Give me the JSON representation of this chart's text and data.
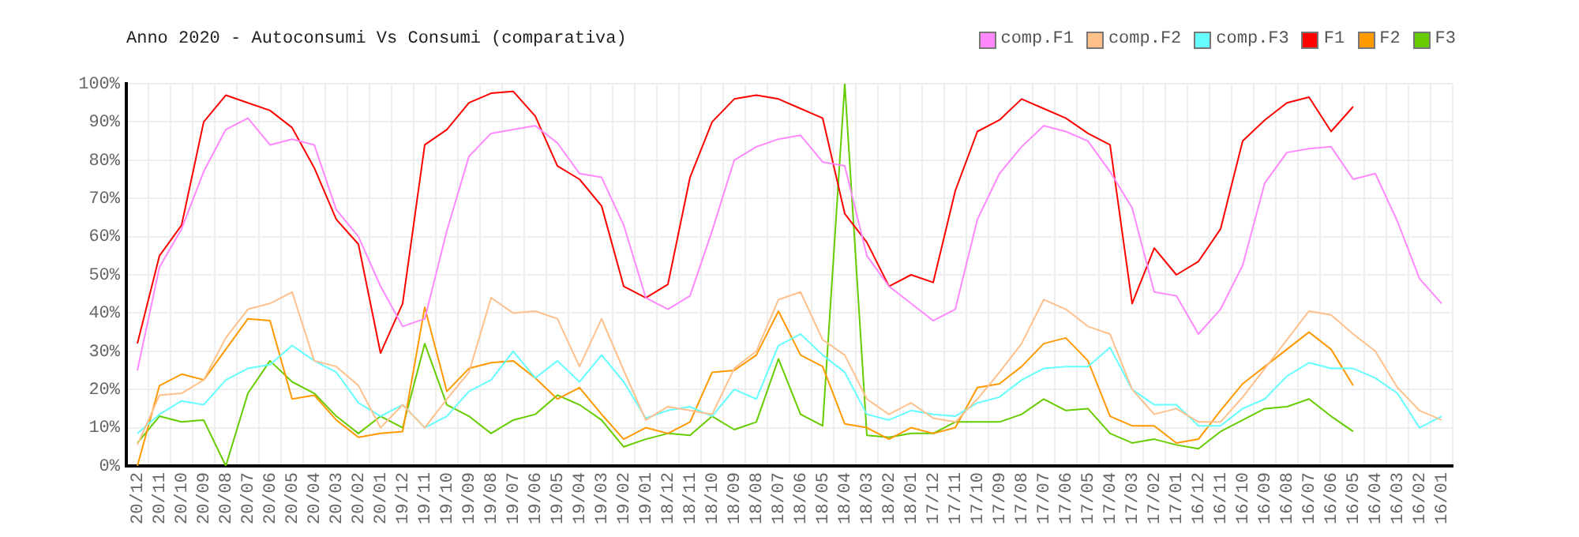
{
  "chart_data": {
    "type": "line",
    "title": "Anno 2020 - Autoconsumi Vs Consumi (comparativa)",
    "categories": [
      "20/12",
      "20/11",
      "20/10",
      "20/09",
      "20/08",
      "20/07",
      "20/06",
      "20/05",
      "20/04",
      "20/03",
      "20/02",
      "20/01",
      "19/12",
      "19/11",
      "19/10",
      "19/09",
      "19/08",
      "19/07",
      "19/06",
      "19/05",
      "19/04",
      "19/03",
      "19/02",
      "19/01",
      "18/12",
      "18/11",
      "18/10",
      "18/09",
      "18/08",
      "18/07",
      "18/06",
      "18/05",
      "18/04",
      "18/03",
      "18/02",
      "18/01",
      "17/12",
      "17/11",
      "17/10",
      "17/09",
      "17/08",
      "17/07",
      "17/06",
      "17/05",
      "17/04",
      "17/03",
      "17/02",
      "17/01",
      "16/12",
      "16/11",
      "16/10",
      "16/09",
      "16/08",
      "16/07",
      "16/06",
      "16/05",
      "16/04",
      "16/03",
      "16/02",
      "16/01"
    ],
    "series": [
      {
        "name": "comp.F1",
        "color": "#ff88ff",
        "values": [
          25,
          52,
          62,
          77,
          88,
          91,
          84,
          85.5,
          84,
          67,
          60,
          47,
          36.5,
          38.5,
          61.5,
          81,
          87,
          88,
          89,
          84.5,
          76.5,
          75.5,
          63,
          44,
          41,
          44.5,
          61.5,
          80,
          83.5,
          85.5,
          86.5,
          79.5,
          78.5,
          55,
          47,
          42.5,
          38,
          41,
          64.5,
          76.5,
          83.5,
          89,
          87.5,
          85,
          77,
          67.5,
          45.5,
          44.5,
          34.5,
          41,
          52.5,
          74,
          82,
          83,
          83.5,
          75,
          76.5,
          64,
          49,
          42.5
        ]
      },
      {
        "name": "comp.F2",
        "color": "#ffc08c",
        "values": [
          5.5,
          18.5,
          19,
          22.5,
          33.5,
          41,
          42.5,
          45.5,
          27.5,
          26,
          21,
          10,
          16,
          10,
          17.5,
          24.5,
          44,
          40,
          40.5,
          38.5,
          26,
          38.5,
          25,
          12,
          15.5,
          14.5,
          13.5,
          25.5,
          30,
          43.5,
          45.5,
          33,
          29,
          17.5,
          13.5,
          16.5,
          12.5,
          11.5,
          17.5,
          24.5,
          32,
          43.5,
          41,
          36.5,
          34.5,
          20,
          13.5,
          15,
          11.5,
          11.5,
          18,
          25.5,
          33,
          40.5,
          39.5,
          34.5,
          30,
          20.5,
          14.5,
          12
        ]
      },
      {
        "name": "comp.F3",
        "color": "#66ffff",
        "values": [
          8.5,
          13.5,
          17,
          16,
          22.5,
          25.5,
          26.5,
          31.5,
          27.5,
          24.5,
          16.5,
          13,
          16,
          10,
          13,
          19.5,
          22.5,
          30,
          23,
          27.5,
          22,
          29,
          22,
          12.5,
          14.5,
          15.5,
          13,
          20,
          17.5,
          31.5,
          34.5,
          29,
          24.5,
          13.5,
          12,
          14.5,
          13.5,
          13,
          16.5,
          18,
          22.5,
          25.5,
          26,
          26,
          31,
          20,
          16,
          16,
          10.5,
          10.5,
          15,
          17.5,
          23.5,
          27,
          25.5,
          25.5,
          23,
          19,
          10,
          13
        ]
      },
      {
        "name": "F1",
        "color": "#ff0000",
        "values": [
          32,
          55,
          63,
          90,
          97,
          95,
          93,
          88.5,
          78,
          64.5,
          58,
          29.5,
          42.5,
          84,
          88,
          95,
          97.5,
          98,
          91.5,
          78.5,
          75,
          68,
          47,
          44,
          47.5,
          75.5,
          90,
          96,
          97,
          96,
          93.5,
          91,
          66,
          58.5,
          47,
          50,
          48,
          72,
          87.5,
          90.5,
          96,
          93.5,
          91,
          87,
          84,
          42.5,
          57,
          50,
          53.5,
          62,
          85,
          90.5,
          95,
          96.5,
          87.5,
          94,
          null,
          null,
          null,
          null
        ]
      },
      {
        "name": "F2",
        "color": "#ff9900",
        "values": [
          0,
          21,
          24,
          22.5,
          30.5,
          38.5,
          38,
          17.5,
          18.5,
          12,
          7.5,
          8.5,
          9,
          41.5,
          19.5,
          25.5,
          27,
          27.5,
          23,
          17.5,
          20.5,
          13.5,
          7,
          10,
          8.5,
          11.5,
          24.5,
          25,
          29,
          40.5,
          29,
          26,
          11,
          10,
          7,
          10,
          8.5,
          10,
          20.5,
          21.5,
          26,
          32,
          33.5,
          27.5,
          13,
          10.5,
          10.5,
          6,
          7,
          14.5,
          21.5,
          26,
          30.5,
          35,
          30.5,
          21,
          null,
          null,
          null,
          null
        ]
      },
      {
        "name": "F3",
        "color": "#66cc00",
        "values": [
          6,
          13,
          11.5,
          12,
          0,
          19,
          27.5,
          22,
          19,
          13,
          8.5,
          13,
          10,
          32,
          16,
          13,
          8.5,
          12,
          13.5,
          18.5,
          16,
          12,
          5,
          7,
          8.5,
          8,
          13,
          9.5,
          11.5,
          28,
          13.5,
          10.5,
          100,
          8,
          7.5,
          8.5,
          8.5,
          11.5,
          11.5,
          11.5,
          13.5,
          17.5,
          14.5,
          15,
          8.5,
          6,
          7,
          5.5,
          4.5,
          9,
          12,
          15,
          15.5,
          17.5,
          13,
          9,
          null,
          null,
          null,
          null
        ]
      }
    ],
    "ylim": [
      0,
      100
    ],
    "yticks": [
      {
        "value": 0,
        "label": "0%"
      },
      {
        "value": 10,
        "label": "10%"
      },
      {
        "value": 20,
        "label": "20%"
      },
      {
        "value": 30,
        "label": "30%"
      },
      {
        "value": 40,
        "label": "40%"
      },
      {
        "value": 50,
        "label": "50%"
      },
      {
        "value": 60,
        "label": "60%"
      },
      {
        "value": 70,
        "label": "70%"
      },
      {
        "value": 80,
        "label": "80%"
      },
      {
        "value": 90,
        "label": "90%"
      },
      {
        "value": 100,
        "label": "100%"
      }
    ],
    "grid": true,
    "legend": "top right",
    "marker": "none",
    "line_style": "solid"
  }
}
